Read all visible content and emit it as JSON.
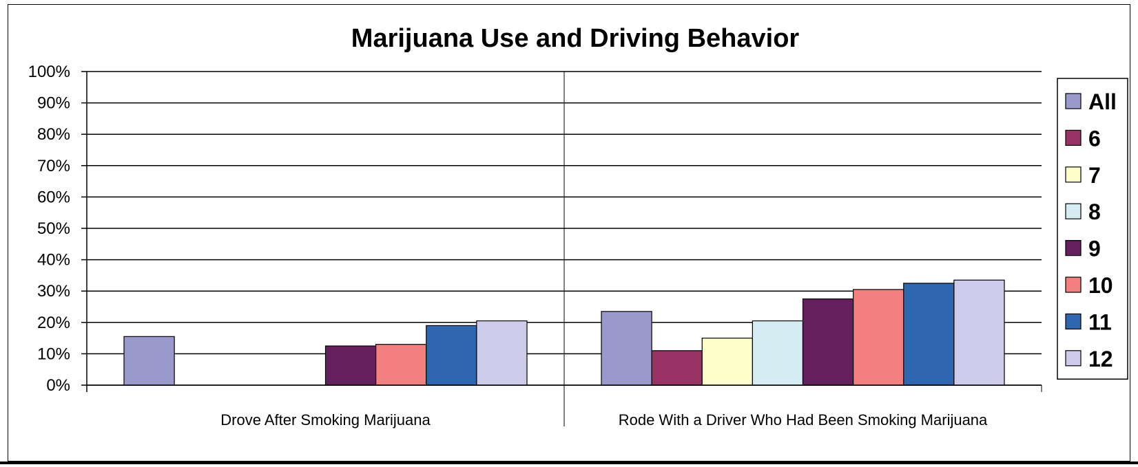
{
  "chart_data": {
    "type": "bar",
    "title": "Marijuana Use and Driving Behavior",
    "categories": [
      "Drove After Smoking Marijuana",
      "Rode With a Driver Who Had Been Smoking Marijuana"
    ],
    "ylim": [
      0,
      100
    ],
    "yticks": [
      "0%",
      "10%",
      "20%",
      "30%",
      "40%",
      "50%",
      "60%",
      "70%",
      "80%",
      "90%",
      "100%"
    ],
    "grid": true,
    "legend_position": "right",
    "series": [
      {
        "name": "All",
        "color": "#9999cc",
        "values": [
          15.5,
          23.5
        ]
      },
      {
        "name": "6",
        "color": "#993366",
        "values": [
          null,
          11
        ]
      },
      {
        "name": "7",
        "color": "#ffffcc",
        "values": [
          null,
          15
        ]
      },
      {
        "name": "8",
        "color": "#d5ecf3",
        "values": [
          null,
          20.5
        ]
      },
      {
        "name": "9",
        "color": "#651f5e",
        "values": [
          12.5,
          27.5
        ]
      },
      {
        "name": "10",
        "color": "#f47f7f",
        "values": [
          13,
          30.5
        ]
      },
      {
        "name": "11",
        "color": "#2f66b0",
        "values": [
          19,
          32.5
        ]
      },
      {
        "name": "12",
        "color": "#ccccea",
        "values": [
          20.5,
          33.5
        ]
      }
    ]
  }
}
